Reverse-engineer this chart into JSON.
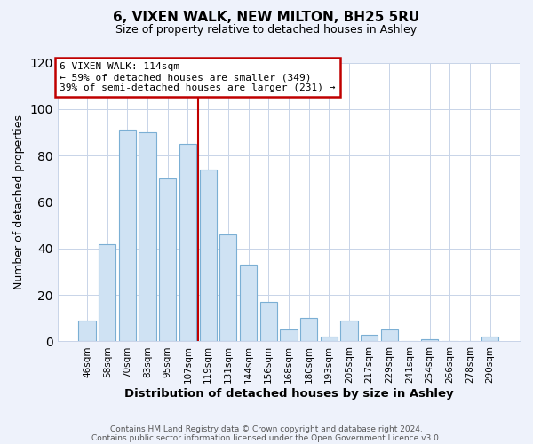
{
  "title": "6, VIXEN WALK, NEW MILTON, BH25 5RU",
  "subtitle": "Size of property relative to detached houses in Ashley",
  "xlabel": "Distribution of detached houses by size in Ashley",
  "ylabel": "Number of detached properties",
  "footer_lines": [
    "Contains HM Land Registry data © Crown copyright and database right 2024.",
    "Contains public sector information licensed under the Open Government Licence v3.0."
  ],
  "bar_labels": [
    "46sqm",
    "58sqm",
    "70sqm",
    "83sqm",
    "95sqm",
    "107sqm",
    "119sqm",
    "131sqm",
    "144sqm",
    "156sqm",
    "168sqm",
    "180sqm",
    "193sqm",
    "205sqm",
    "217sqm",
    "229sqm",
    "241sqm",
    "254sqm",
    "266sqm",
    "278sqm",
    "290sqm"
  ],
  "bar_values": [
    9,
    42,
    91,
    90,
    70,
    85,
    74,
    46,
    33,
    17,
    5,
    10,
    2,
    9,
    3,
    5,
    0,
    1,
    0,
    0,
    2
  ],
  "bar_color": "#cfe2f3",
  "bar_edge_color": "#7bafd4",
  "vline_x_index": 5.5,
  "vline_color": "#c00000",
  "annotation_line1": "6 VIXEN WALK: 114sqm",
  "annotation_line2": "← 59% of detached houses are smaller (349)",
  "annotation_line3": "39% of semi-detached houses are larger (231) →",
  "annotation_color": "#c00000",
  "ylim": [
    0,
    120
  ],
  "yticks": [
    0,
    20,
    40,
    60,
    80,
    100,
    120
  ],
  "bg_color": "#eef2fb",
  "plot_bg_color": "#ffffff",
  "grid_color": "#c8d4e8",
  "title_fontsize": 11,
  "subtitle_fontsize": 9,
  "tick_fontsize": 7.5,
  "ylabel_fontsize": 9,
  "xlabel_fontsize": 9.5
}
